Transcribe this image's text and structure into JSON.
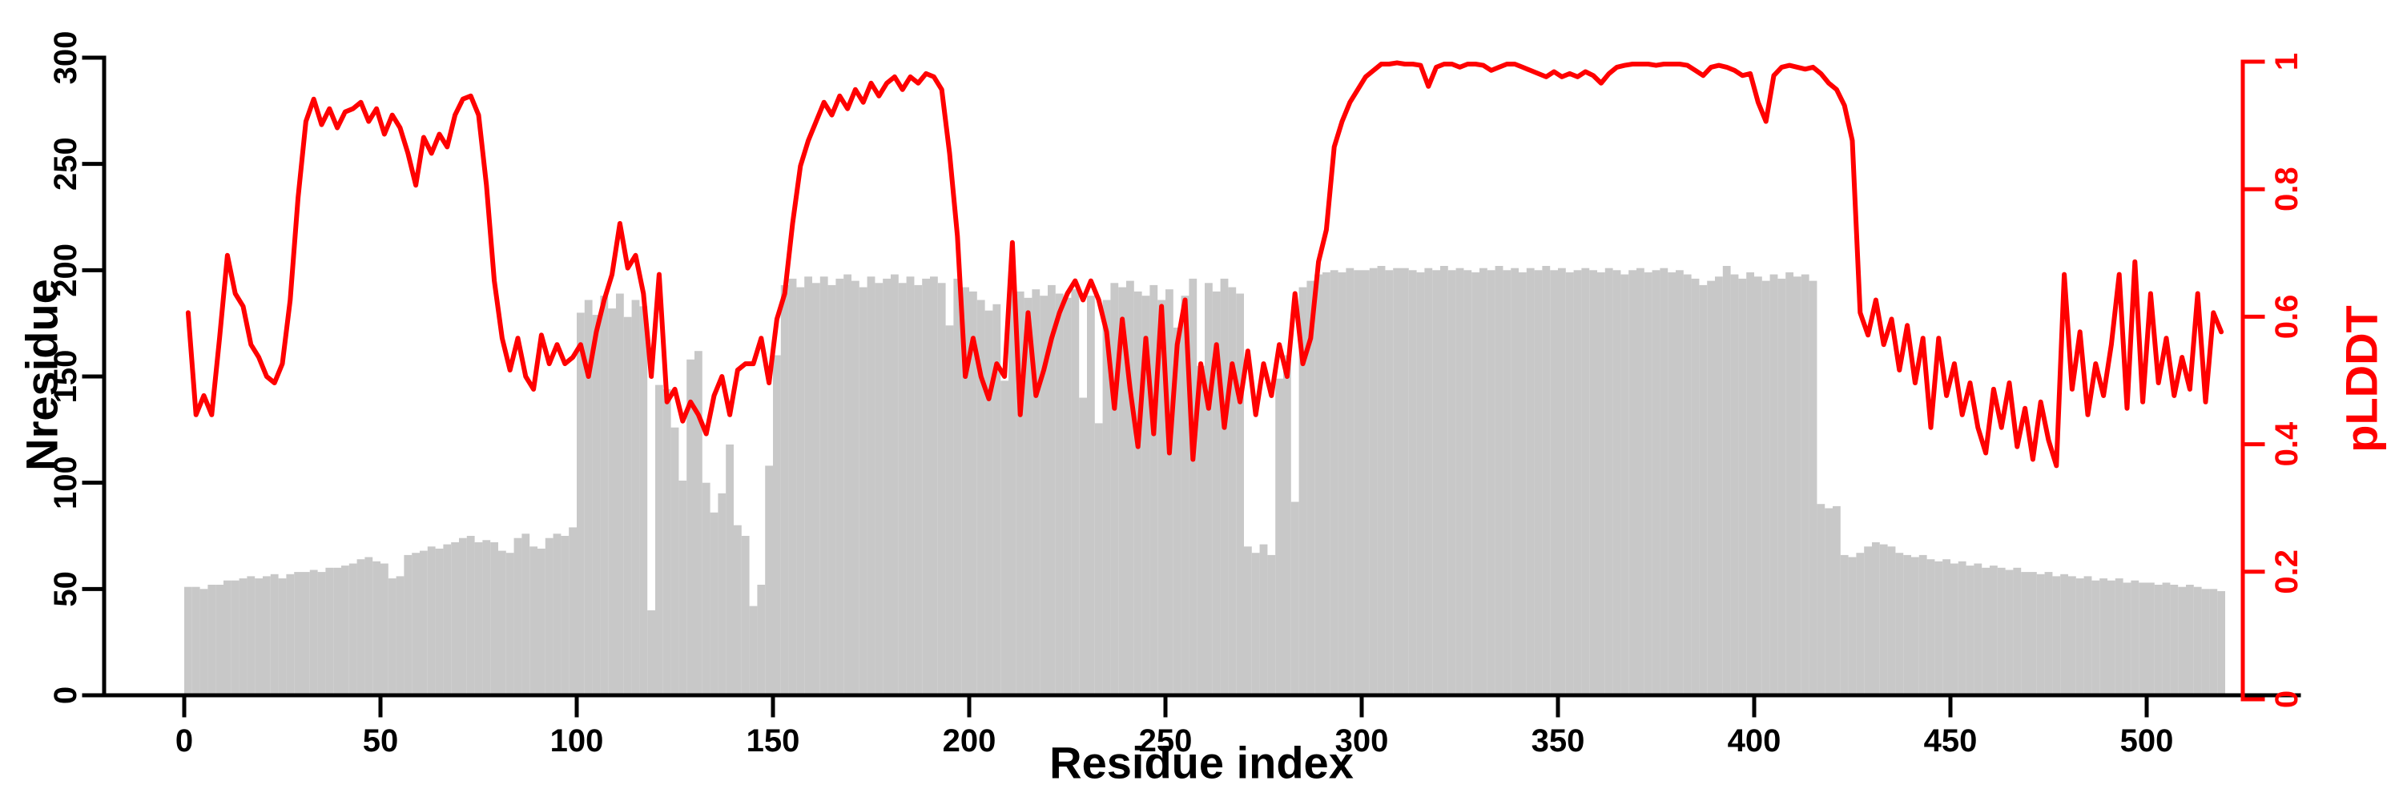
{
  "figure": {
    "background": "#ffffff"
  },
  "chart_data": {
    "type": "bar+line",
    "title": "",
    "xlabel": "Residue index",
    "grid": false,
    "legend": null,
    "x_axis": {
      "range": [
        0,
        520
      ],
      "ticks": [
        0,
        50,
        100,
        150,
        200,
        250,
        300,
        350,
        400,
        450,
        500
      ],
      "color": "#000000"
    },
    "y_left": {
      "label": "Nresidue",
      "range": [
        0,
        300
      ],
      "ticks": [
        0,
        50,
        100,
        150,
        200,
        250,
        300
      ],
      "color": "#000000"
    },
    "y_right": {
      "label": "pLDDT",
      "range": [
        0,
        1
      ],
      "ticks": [
        0,
        0.2,
        0.4,
        0.6,
        0.8,
        1
      ],
      "color": "#ff0000"
    },
    "series": [
      {
        "name": "Nresidue",
        "type": "bar",
        "axis": "left",
        "color": "#c8c8c8",
        "x_start": 0,
        "x_step": 2,
        "values": [
          51,
          51,
          50,
          52,
          52,
          54,
          54,
          55,
          56,
          55,
          56,
          57,
          55,
          57,
          58,
          58,
          59,
          58,
          60,
          60,
          61,
          62,
          64,
          65,
          63,
          62,
          55,
          56,
          66,
          67,
          68,
          70,
          69,
          71,
          72,
          74,
          75,
          72,
          73,
          72,
          68,
          67,
          74,
          76,
          70,
          69,
          74,
          76,
          75,
          79,
          180,
          186,
          179,
          188,
          182,
          189,
          178,
          186,
          183,
          40,
          146,
          144,
          126,
          101,
          158,
          162,
          100,
          86,
          95,
          118,
          80,
          75,
          42,
          52,
          108,
          160,
          193,
          196,
          192,
          197,
          194,
          197,
          193,
          196,
          198,
          195,
          192,
          197,
          194,
          196,
          198,
          194,
          197,
          193,
          196,
          197,
          194,
          174,
          196,
          192,
          190,
          186,
          181,
          184,
          148,
          194,
          190,
          187,
          191,
          188,
          193,
          189,
          187,
          191,
          140,
          188,
          128,
          186,
          194,
          192,
          195,
          190,
          188,
          193,
          186,
          191,
          173,
          188,
          196,
          155,
          194,
          190,
          196,
          192,
          189,
          70,
          67,
          71,
          66,
          149,
          160,
          91,
          192,
          195,
          198,
          199,
          200,
          199,
          201,
          200,
          200,
          201,
          202,
          200,
          201,
          201,
          200,
          199,
          201,
          200,
          202,
          200,
          201,
          200,
          199,
          201,
          200,
          202,
          200,
          201,
          199,
          201,
          200,
          202,
          200,
          201,
          199,
          200,
          201,
          200,
          199,
          201,
          200,
          198,
          200,
          201,
          199,
          200,
          201,
          199,
          200,
          198,
          196,
          193,
          195,
          197,
          202,
          198,
          196,
          199,
          197,
          195,
          198,
          196,
          199,
          197,
          198,
          195,
          90,
          88,
          89,
          66,
          65,
          67,
          70,
          72,
          71,
          70,
          67,
          66,
          65,
          66,
          64,
          63,
          64,
          62,
          63,
          61,
          62,
          60,
          61,
          60,
          59,
          60,
          58,
          58,
          57,
          58,
          56,
          57,
          56,
          55,
          56,
          54,
          55,
          54,
          55,
          53,
          54,
          53,
          53,
          52,
          53,
          52,
          51,
          52,
          51,
          50,
          50,
          49
        ]
      },
      {
        "name": "pLDDT",
        "type": "line",
        "axis": "right",
        "color": "#ff0000",
        "stroke_width": 6,
        "x_start": 1,
        "x_step": 2,
        "values": [
          0.6,
          0.44,
          0.47,
          0.44,
          0.56,
          0.69,
          0.63,
          0.61,
          0.55,
          0.53,
          0.5,
          0.49,
          0.52,
          0.62,
          0.78,
          0.9,
          0.935,
          0.895,
          0.92,
          0.89,
          0.915,
          0.92,
          0.93,
          0.9,
          0.92,
          0.88,
          0.91,
          0.89,
          0.85,
          0.8,
          0.875,
          0.85,
          0.88,
          0.86,
          0.91,
          0.935,
          0.94,
          0.91,
          0.8,
          0.65,
          0.56,
          0.51,
          0.56,
          0.5,
          0.48,
          0.565,
          0.52,
          0.55,
          0.52,
          0.53,
          0.55,
          0.5,
          0.57,
          0.62,
          0.66,
          0.74,
          0.67,
          0.69,
          0.63,
          0.5,
          0.66,
          0.46,
          0.48,
          0.43,
          0.46,
          0.44,
          0.41,
          0.47,
          0.5,
          0.44,
          0.51,
          0.52,
          0.52,
          0.56,
          0.49,
          0.59,
          0.63,
          0.74,
          0.83,
          0.87,
          0.9,
          0.93,
          0.91,
          0.94,
          0.92,
          0.95,
          0.93,
          0.96,
          0.94,
          0.96,
          0.97,
          0.95,
          0.97,
          0.96,
          0.975,
          0.97,
          0.95,
          0.85,
          0.72,
          0.5,
          0.56,
          0.5,
          0.465,
          0.52,
          0.5,
          0.71,
          0.44,
          0.6,
          0.47,
          0.51,
          0.56,
          0.6,
          0.63,
          0.65,
          0.62,
          0.65,
          0.62,
          0.57,
          0.45,
          0.59,
          0.48,
          0.39,
          0.56,
          0.41,
          0.61,
          0.38,
          0.55,
          0.62,
          0.37,
          0.52,
          0.45,
          0.55,
          0.42,
          0.52,
          0.46,
          0.54,
          0.44,
          0.52,
          0.47,
          0.55,
          0.5,
          0.63,
          0.52,
          0.56,
          0.68,
          0.73,
          0.86,
          0.9,
          0.93,
          0.95,
          0.97,
          0.98,
          0.99,
          0.99,
          0.992,
          0.99,
          0.99,
          0.988,
          0.955,
          0.985,
          0.99,
          0.99,
          0.985,
          0.99,
          0.99,
          0.988,
          0.98,
          0.985,
          0.99,
          0.99,
          0.985,
          0.98,
          0.975,
          0.97,
          0.978,
          0.97,
          0.975,
          0.97,
          0.978,
          0.972,
          0.96,
          0.975,
          0.985,
          0.988,
          0.99,
          0.99,
          0.99,
          0.988,
          0.99,
          0.99,
          0.99,
          0.988,
          0.98,
          0.972,
          0.985,
          0.988,
          0.985,
          0.98,
          0.972,
          0.975,
          0.93,
          0.9,
          0.972,
          0.985,
          0.988,
          0.985,
          0.982,
          0.985,
          0.975,
          0.96,
          0.95,
          0.925,
          0.87,
          0.6,
          0.565,
          0.62,
          0.55,
          0.59,
          0.51,
          0.58,
          0.49,
          0.56,
          0.42,
          0.56,
          0.47,
          0.52,
          0.44,
          0.49,
          0.42,
          0.38,
          0.48,
          0.42,
          0.49,
          0.39,
          0.45,
          0.37,
          0.46,
          0.4,
          0.36,
          0.66,
          0.48,
          0.57,
          0.44,
          0.52,
          0.47,
          0.55,
          0.66,
          0.45,
          0.68,
          0.46,
          0.63,
          0.49,
          0.56,
          0.47,
          0.53,
          0.48,
          0.63,
          0.46,
          0.6,
          0.57
        ]
      }
    ]
  }
}
